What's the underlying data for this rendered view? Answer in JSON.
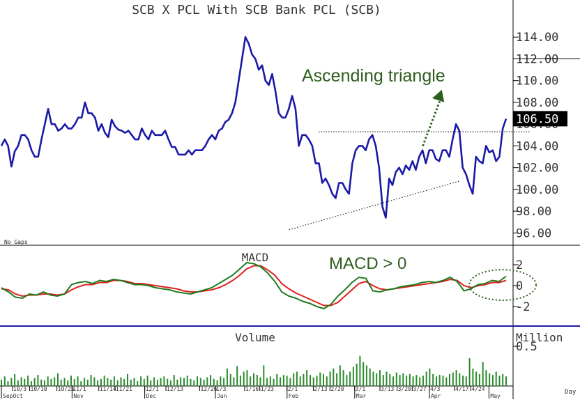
{
  "chart_data": [
    {
      "type": "line",
      "title": "SCB X PCL With SCB Bank PCL (SCB)",
      "ylim": [
        95,
        116
      ],
      "yticks": [
        96,
        98,
        100,
        102,
        104,
        106,
        108,
        110,
        112,
        114
      ],
      "ytick_labels": [
        "96.00",
        "98.00",
        "100.00",
        "102.00",
        "104.00",
        "106.00",
        "108.00",
        "110.00",
        "112.00",
        "114.00"
      ],
      "last_price": 106.5,
      "last_price_label": "106.50",
      "note": "No Gaps",
      "annotation": "Ascending triangle",
      "grid": false,
      "line_color": "#1a1aa8",
      "resistance_level": 105.3,
      "support_line": {
        "start": [
          0.57,
          96.3
        ],
        "end": [
          0.91,
          100.8
        ]
      },
      "arrow": {
        "start": [
          0.835,
          104.0
        ],
        "end": [
          0.87,
          108.8
        ],
        "color": "#2e5e1e"
      },
      "values": [
        104.0,
        104.6,
        104.0,
        102.1,
        103.5,
        104.0,
        105.0,
        105.0,
        104.6,
        103.6,
        103.0,
        103.0,
        104.6,
        106.0,
        107.4,
        106.0,
        106.0,
        105.4,
        105.6,
        106.0,
        105.6,
        105.6,
        106.0,
        106.6,
        106.6,
        108.0,
        107.0,
        107.0,
        106.6,
        105.4,
        106.0,
        105.2,
        104.8,
        106.4,
        105.8,
        105.5,
        105.4,
        105.2,
        105.4,
        105.0,
        104.6,
        104.6,
        105.6,
        105.0,
        104.6,
        105.4,
        105.0,
        105.0,
        105.0,
        105.4,
        104.6,
        103.9,
        103.9,
        103.2,
        103.2,
        103.2,
        103.6,
        103.2,
        103.6,
        103.6,
        103.6,
        104.0,
        104.6,
        105.0,
        104.6,
        105.4,
        105.6,
        106.2,
        106.4,
        107.0,
        108.0,
        110.0,
        112.0,
        114.0,
        113.4,
        112.4,
        112.0,
        111.0,
        111.4,
        110.0,
        109.6,
        110.6,
        109.0,
        107.0,
        106.6,
        106.6,
        107.4,
        108.6,
        107.4,
        104.0,
        105.0,
        105.0,
        104.6,
        104.0,
        102.4,
        102.4,
        100.6,
        101.0,
        100.4,
        99.6,
        99.2,
        100.6,
        100.6,
        100.0,
        99.6,
        102.4,
        103.6,
        104.0,
        104.0,
        103.6,
        104.6,
        105.0,
        104.0,
        102.0,
        98.4,
        97.4,
        101.0,
        100.4,
        101.6,
        102.0,
        101.4,
        102.2,
        101.8,
        102.6,
        101.8,
        103.0,
        103.6,
        102.4,
        103.6,
        103.6,
        102.8,
        102.6,
        103.6,
        103.6,
        103.0,
        104.6,
        106.0,
        105.4,
        102.0,
        101.4,
        100.4,
        99.6,
        103.0,
        102.6,
        102.4,
        104.0,
        103.4,
        103.6,
        102.6,
        103.0,
        105.6,
        106.5
      ]
    },
    {
      "type": "line",
      "title": "MACD",
      "annotation": "MACD > 0",
      "ylim": [
        -3.2,
        3.2
      ],
      "yticks": [
        2,
        0,
        -2
      ],
      "ytick_labels": [
        "2",
        "0",
        "-2"
      ],
      "series": [
        {
          "color": "#1e7a1e",
          "values": [
            -0.2,
            -0.6,
            -1.1,
            -1.2,
            -0.8,
            -0.9,
            -0.6,
            -0.9,
            -1.0,
            -0.8,
            0.1,
            0.3,
            0.4,
            0.2,
            0.5,
            0.4,
            0.6,
            0.5,
            0.3,
            0.1,
            0.1,
            0.0,
            -0.2,
            -0.3,
            -0.4,
            -0.6,
            -0.7,
            -0.8,
            -0.6,
            -0.4,
            -0.2,
            0.2,
            0.6,
            1.0,
            1.6,
            2.2,
            2.1,
            1.8,
            1.2,
            0.4,
            -0.6,
            -1.0,
            -1.2,
            -1.5,
            -1.7,
            -2.0,
            -2.2,
            -1.8,
            -1.0,
            -0.4,
            0.3,
            0.8,
            0.7,
            -0.5,
            -0.6,
            -0.4,
            -0.3,
            -0.1,
            0.0,
            0.1,
            0.3,
            0.4,
            0.3,
            0.5,
            0.8,
            0.4,
            -0.5,
            -0.3,
            0.1,
            0.2,
            0.5,
            0.4,
            0.9
          ]
        },
        {
          "color": "#e02020",
          "values": [
            -0.3,
            -0.4,
            -0.8,
            -1.0,
            -0.9,
            -0.9,
            -0.8,
            -0.8,
            -0.9,
            -0.8,
            -0.4,
            -0.1,
            0.1,
            0.1,
            0.3,
            0.3,
            0.5,
            0.5,
            0.4,
            0.2,
            0.2,
            0.1,
            0.0,
            -0.1,
            -0.2,
            -0.3,
            -0.5,
            -0.6,
            -0.6,
            -0.5,
            -0.4,
            -0.2,
            0.1,
            0.5,
            1.0,
            1.6,
            1.9,
            1.9,
            1.5,
            1.0,
            0.2,
            -0.3,
            -0.7,
            -1.0,
            -1.3,
            -1.6,
            -1.9,
            -1.9,
            -1.6,
            -1.0,
            -0.4,
            0.2,
            0.4,
            0.0,
            -0.3,
            -0.4,
            -0.3,
            -0.2,
            -0.1,
            0.0,
            0.1,
            0.2,
            0.3,
            0.4,
            0.6,
            0.5,
            0.0,
            -0.2,
            0.0,
            0.1,
            0.3,
            0.3,
            0.5
          ]
        }
      ]
    },
    {
      "type": "bar",
      "title": "Volume",
      "ylabel": "Million",
      "ylim": [
        0,
        0.72
      ],
      "yticks": [
        0.5
      ],
      "ytick_labels": [
        "0.5"
      ],
      "bar_color": "#2a8a2a",
      "values": [
        0.08,
        0.12,
        0.06,
        0.1,
        0.15,
        0.07,
        0.11,
        0.09,
        0.13,
        0.06,
        0.1,
        0.14,
        0.08,
        0.07,
        0.12,
        0.09,
        0.11,
        0.16,
        0.08,
        0.1,
        0.07,
        0.13,
        0.09,
        0.12,
        0.06,
        0.1,
        0.08,
        0.14,
        0.11,
        0.07,
        0.09,
        0.13,
        0.1,
        0.08,
        0.12,
        0.07,
        0.11,
        0.09,
        0.15,
        0.08,
        0.1,
        0.06,
        0.12,
        0.09,
        0.13,
        0.07,
        0.11,
        0.08,
        0.1,
        0.12,
        0.09,
        0.07,
        0.14,
        0.08,
        0.11,
        0.1,
        0.13,
        0.09,
        0.07,
        0.12,
        0.1,
        0.08,
        0.11,
        0.14,
        0.09,
        0.07,
        0.12,
        0.1,
        0.22,
        0.15,
        0.11,
        0.25,
        0.13,
        0.18,
        0.2,
        0.12,
        0.16,
        0.14,
        0.11,
        0.26,
        0.1,
        0.12,
        0.09,
        0.15,
        0.11,
        0.14,
        0.13,
        0.1,
        0.16,
        0.18,
        0.12,
        0.15,
        0.2,
        0.14,
        0.11,
        0.13,
        0.17,
        0.15,
        0.12,
        0.18,
        0.22,
        0.16,
        0.26,
        0.2,
        0.14,
        0.18,
        0.24,
        0.28,
        0.38,
        0.3,
        0.26,
        0.22,
        0.18,
        0.16,
        0.2,
        0.14,
        0.18,
        0.15,
        0.12,
        0.17,
        0.14,
        0.16,
        0.13,
        0.15,
        0.12,
        0.14,
        0.11,
        0.13,
        0.18,
        0.22,
        0.15,
        0.12,
        0.14,
        0.13,
        0.11,
        0.15,
        0.17,
        0.2,
        0.16,
        0.13,
        0.12,
        0.35,
        0.22,
        0.18,
        0.15,
        0.3,
        0.2,
        0.16,
        0.14,
        0.18,
        0.13,
        0.15,
        0.12
      ]
    }
  ],
  "x_axis": {
    "labels": [
      {
        "text": "10/3",
        "pos": 0.022
      },
      {
        "text": "10/10",
        "pos": 0.056
      },
      {
        "text": "10/25",
        "pos": 0.11
      },
      {
        "text": "11/1",
        "pos": 0.14
      },
      {
        "text": "11/14",
        "pos": 0.193
      },
      {
        "text": "11/21",
        "pos": 0.225
      },
      {
        "text": "12/1",
        "pos": 0.284
      },
      {
        "text": "12/13",
        "pos": 0.326
      },
      {
        "text": "12/26",
        "pos": 0.393
      },
      {
        "text": "1/3",
        "pos": 0.424
      },
      {
        "text": "1/16",
        "pos": 0.482
      },
      {
        "text": "1/23",
        "pos": 0.512
      },
      {
        "text": "2/1",
        "pos": 0.566
      },
      {
        "text": "2/13",
        "pos": 0.618
      },
      {
        "text": "2/20",
        "pos": 0.651
      },
      {
        "text": "3/1",
        "pos": 0.7
      },
      {
        "text": "3/13",
        "pos": 0.75
      },
      {
        "text": "3/20",
        "pos": 0.784
      },
      {
        "text": "3/27",
        "pos": 0.814
      },
      {
        "text": "4/3",
        "pos": 0.848
      },
      {
        "text": "4/17",
        "pos": 0.898
      },
      {
        "text": "4/24",
        "pos": 0.93
      }
    ],
    "months": [
      {
        "text": "SepOct",
        "pos": 0.0
      },
      {
        "text": "Nov",
        "pos": 0.14
      },
      {
        "text": "Dec",
        "pos": 0.284
      },
      {
        "text": "Jan",
        "pos": 0.424
      },
      {
        "text": "Feb",
        "pos": 0.566
      },
      {
        "text": "Mar",
        "pos": 0.7
      },
      {
        "text": "Apr",
        "pos": 0.848
      },
      {
        "text": "May",
        "pos": 0.966
      }
    ],
    "unit": "Day"
  }
}
